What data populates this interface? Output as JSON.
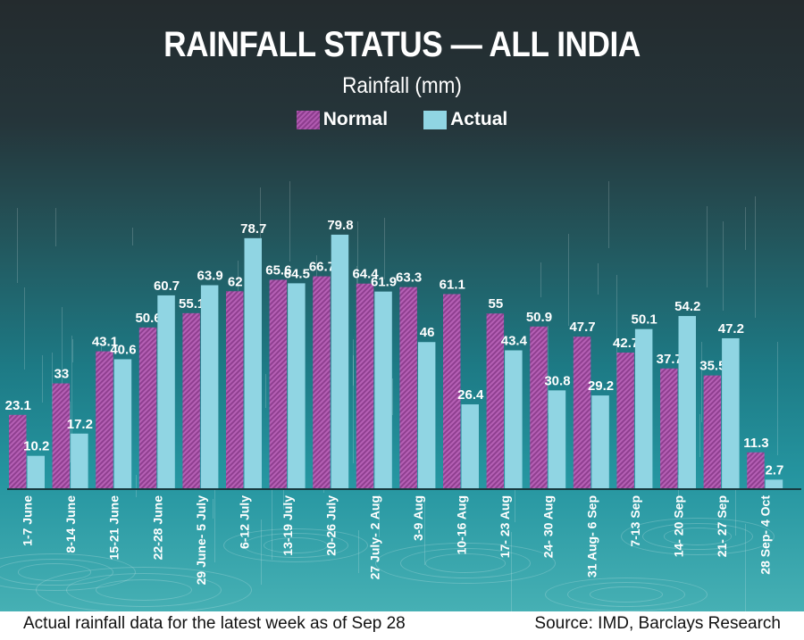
{
  "chart_data": {
    "type": "bar",
    "title": "RAINFALL STATUS — ALL INDIA",
    "subtitle": "Rainfall (mm)",
    "xlabel": "",
    "ylabel": "Rainfall (mm)",
    "ylim": [
      0,
      80
    ],
    "grid": false,
    "legend_position": "top-center",
    "categories": [
      "1-7 June",
      "8-14 June",
      "15-21 June",
      "22-28 June",
      "29 June- 5 July",
      "6-12 July",
      "13-19 July",
      "20-26 July",
      "27 July- 2 Aug",
      "3-9 Aug",
      "10-16 Aug",
      "17- 23 Aug",
      "24- 30 Aug",
      "31 Aug- 6 Sep",
      "7-13 Sep",
      "14- 20 Sep",
      "21- 27 Sep",
      "28 Sep- 4 Oct"
    ],
    "series": [
      {
        "name": "Normal",
        "color": "#a14ea3",
        "pattern": "hatched",
        "values": [
          23.1,
          33,
          43.1,
          50.6,
          55.1,
          62,
          65.6,
          66.7,
          64.4,
          63.3,
          61.1,
          55,
          50.9,
          47.7,
          42.7,
          37.7,
          35.5,
          11.3
        ]
      },
      {
        "name": "Actual",
        "color": "#90d5e3",
        "pattern": "solid",
        "values": [
          10.2,
          17.2,
          40.6,
          60.7,
          63.9,
          78.7,
          64.5,
          79.8,
          61.9,
          46,
          26.4,
          43.4,
          30.8,
          29.2,
          50.1,
          54.2,
          47.2,
          2.7
        ]
      }
    ]
  },
  "footer": {
    "note": "Actual rainfall data for the latest week as of Sep 28",
    "source": "Source: IMD, Barclays Research"
  }
}
